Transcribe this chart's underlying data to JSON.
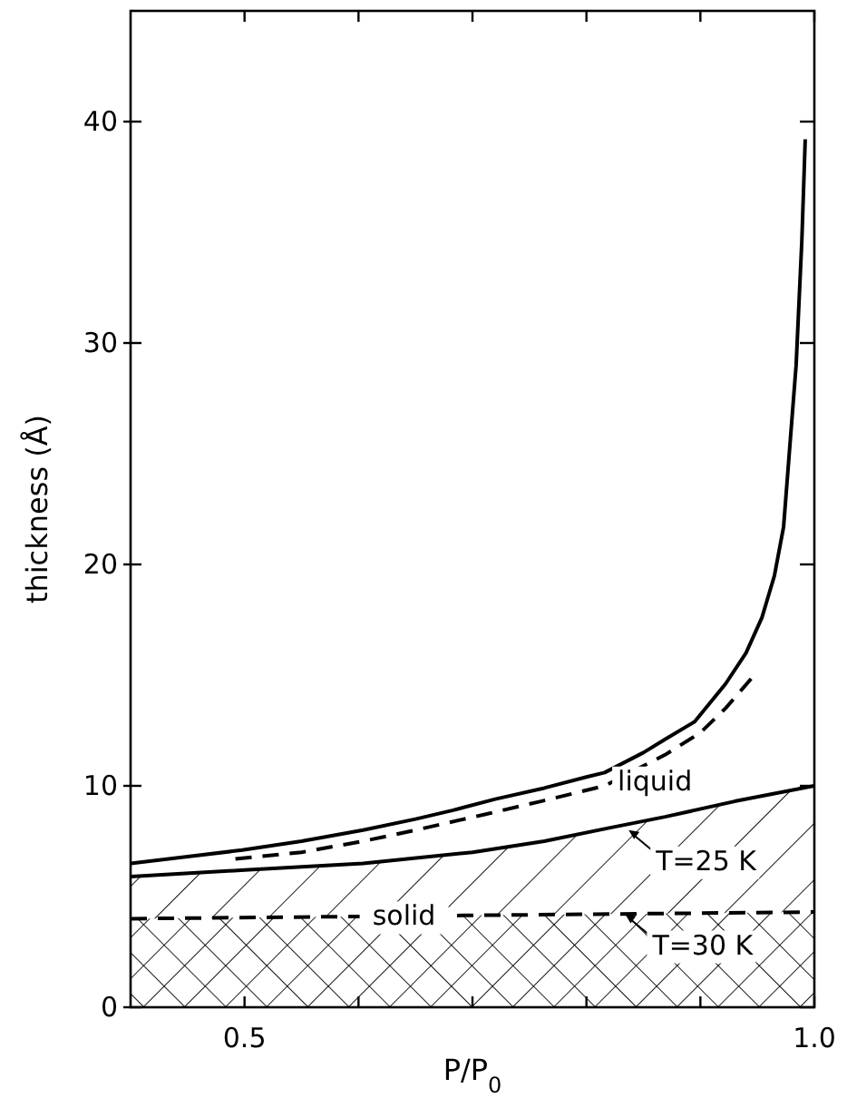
{
  "chart_data": {
    "type": "line",
    "xlabel": "P/P$_{0}$",
    "ylabel": "thickness (Å)",
    "xlim": [
      0.4,
      1.0
    ],
    "ylim": [
      0,
      45
    ],
    "xticks": [
      0.5,
      {
        "value": 0.6,
        "label": null
      },
      {
        "value": 0.7,
        "label": null
      },
      {
        "value": 0.8,
        "label": null
      },
      {
        "value": 0.9,
        "label": null
      },
      {
        "value": 1.0,
        "label": "1.0"
      }
    ],
    "yticks": [
      0,
      10,
      20,
      30,
      40
    ],
    "grid": false,
    "legend": false,
    "marker": "none",
    "series": [
      {
        "type": "line",
        "color": "#000000",
        "line_style": "solid",
        "x": [
          0.4,
          0.45,
          0.498,
          0.55,
          0.604,
          0.65,
          0.683,
          0.72,
          0.763,
          0.8,
          0.816,
          0.85,
          0.869,
          0.895,
          0.922,
          0.94,
          0.954,
          0.965,
          0.973,
          0.984,
          0.989,
          0.992
        ],
        "values": [
          6.5,
          6.8,
          7.1,
          7.5,
          8.0,
          8.5,
          8.9,
          9.4,
          9.9,
          10.4,
          10.6,
          11.5,
          12.1,
          12.9,
          14.6,
          16.0,
          17.6,
          19.5,
          21.7,
          29,
          34.6,
          39.2
        ]
      },
      {
        "type": "line",
        "name": "liquid",
        "color": "#000000",
        "line_style": "dashed",
        "x": [
          0.492,
          0.55,
          0.604,
          0.65,
          0.71,
          0.76,
          0.816,
          0.869,
          0.9,
          0.922,
          0.949
        ],
        "values": [
          6.7,
          7.0,
          7.5,
          8.0,
          8.7,
          9.3,
          10.0,
          11.4,
          12.4,
          13.5,
          15.1
        ]
      },
      {
        "type": "area",
        "color": "#000000",
        "line_style": "solid",
        "x": [
          0.4,
          0.5,
          0.604,
          0.7,
          0.763,
          0.82,
          0.869,
          0.93,
          1.0
        ],
        "values": [
          5.9,
          6.2,
          6.5,
          7.0,
          7.5,
          8.1,
          8.6,
          9.3,
          10.0
        ]
      },
      {
        "type": "area",
        "name": "solid",
        "color": "#000000",
        "line_style": "dashed",
        "x": [
          0.4,
          0.6,
          0.8,
          1.0
        ],
        "values": [
          4.0,
          4.1,
          4.2,
          4.3
        ]
      }
    ],
    "annotations": [
      {
        "text": "T=25 K",
        "x": 0.837,
        "y": 8.0
      },
      {
        "text": "T=30 K",
        "x": 0.834,
        "y": 4.2
      }
    ]
  }
}
